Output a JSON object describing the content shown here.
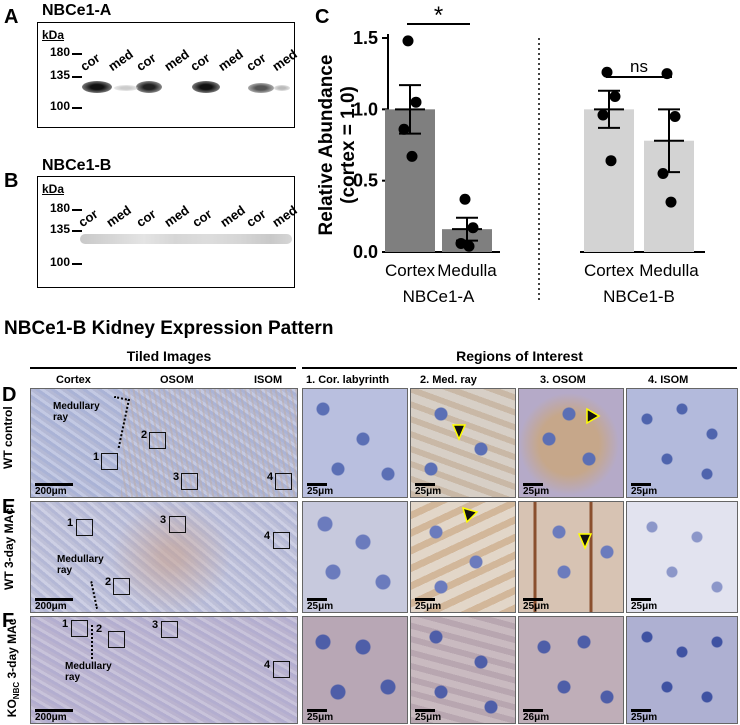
{
  "panels": {
    "A": {
      "letter": "A",
      "title": "NBCe1-A"
    },
    "B": {
      "letter": "B",
      "title": "NBCe1-B"
    },
    "C": {
      "letter": "C"
    },
    "D": {
      "letter": "D",
      "row_label": "WT control"
    },
    "E": {
      "letter": "E",
      "row_label": "WT 3-day MAc"
    },
    "F": {
      "letter": "F",
      "row_label_main": "KO",
      "row_label_sub": "NBC",
      "row_label_rest": "3-day MAc"
    }
  },
  "blot": {
    "kda": "kDa",
    "markers": [
      "180",
      "135",
      "100"
    ],
    "lanes": [
      "cor",
      "med",
      "cor",
      "med",
      "cor",
      "med",
      "cor",
      "med"
    ]
  },
  "section_title": "NBCe1-B Kidney Expression Pattern",
  "headers": {
    "tiled": "Tiled Images",
    "roi": "Regions of Interest",
    "tiled_sub": [
      "Cortex",
      "OSOM",
      "ISOM"
    ],
    "roi_sub": [
      "1. Cor. labyrinth",
      "2. Med. ray",
      "3. OSOM",
      "4. ISOM"
    ]
  },
  "tile_annotations": {
    "medullary_ray": "Medullary ray",
    "roi_numbers": [
      "1",
      "2",
      "3",
      "4"
    ],
    "scale_tiled": "200μm",
    "scale_roi": "25μm",
    "scale_roi_alt": "26μm"
  },
  "chart_data": {
    "type": "bar",
    "ylabel": "Relative Abundance (cortex = 1.0)",
    "ylim": [
      0,
      1.5
    ],
    "yticks": [
      "0.0",
      "0.5",
      "1.0",
      "1.5"
    ],
    "groups": [
      {
        "name": "NBCe1-A",
        "bars": [
          {
            "category": "Cortex",
            "value": 1.0,
            "sem": 0.17,
            "points": [
              1.48,
              1.05,
              0.86,
              0.67
            ],
            "color": "#7f7f7f"
          },
          {
            "category": "Medulla",
            "value": 0.16,
            "sem": 0.08,
            "points": [
              0.37,
              0.17,
              0.06,
              0.04
            ],
            "color": "#7f7f7f"
          }
        ],
        "significance": "*"
      },
      {
        "name": "NBCe1-B",
        "bars": [
          {
            "category": "Cortex",
            "value": 1.0,
            "sem": 0.13,
            "points": [
              1.26,
              1.09,
              0.96,
              0.64
            ],
            "color": "#d3d3d3"
          },
          {
            "category": "Medulla",
            "value": 0.78,
            "sem": 0.22,
            "points": [
              1.25,
              0.95,
              0.55,
              0.35
            ],
            "color": "#d3d3d3"
          }
        ],
        "significance": "ns"
      }
    ]
  }
}
